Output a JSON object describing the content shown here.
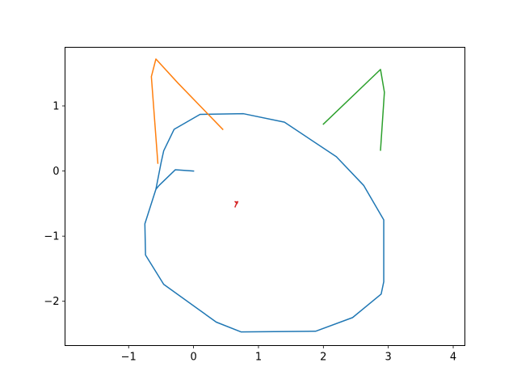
{
  "chart_data": {
    "type": "line",
    "title": "",
    "xlabel": "",
    "ylabel": "",
    "xlim": [
      -1.98,
      4.18
    ],
    "ylim": [
      -2.68,
      1.9
    ],
    "grid": false,
    "legend": "none",
    "xticks": [
      {
        "value": -1,
        "label": "−1"
      },
      {
        "value": 0,
        "label": "0"
      },
      {
        "value": 1,
        "label": "1"
      },
      {
        "value": 2,
        "label": "2"
      },
      {
        "value": 3,
        "label": "3"
      },
      {
        "value": 4,
        "label": "4"
      }
    ],
    "yticks": [
      {
        "value": 1,
        "label": "1"
      },
      {
        "value": 0,
        "label": "0"
      },
      {
        "value": -1,
        "label": "−1"
      },
      {
        "value": -2,
        "label": "−2"
      }
    ],
    "series": [
      {
        "color": "#1f77b4",
        "x": [
          0.0,
          -0.28,
          -0.53,
          -0.58,
          -0.75,
          -0.74,
          -0.46,
          0.35,
          0.73,
          1.88,
          2.45,
          2.89,
          2.93,
          2.93,
          2.62,
          2.2,
          1.4,
          0.77,
          0.1,
          -0.3,
          -0.46,
          -0.5,
          -0.58
        ],
        "y": [
          0.0,
          0.02,
          -0.22,
          -0.28,
          -0.81,
          -1.29,
          -1.74,
          -2.32,
          -2.47,
          -2.46,
          -2.25,
          -1.89,
          -1.7,
          -0.75,
          -0.22,
          0.22,
          0.75,
          0.88,
          0.87,
          0.64,
          0.31,
          0.13,
          -0.28
        ]
      },
      {
        "color": "#ff7f0e",
        "x": [
          -0.55,
          -0.65,
          -0.58,
          -0.24,
          0.45
        ],
        "y": [
          0.12,
          1.45,
          1.72,
          1.35,
          0.64
        ]
      },
      {
        "color": "#2ca02c",
        "x": [
          2.0,
          2.88,
          2.94,
          2.88
        ],
        "y": [
          0.72,
          1.56,
          1.21,
          0.32
        ]
      },
      {
        "color": "#d62728",
        "x": [
          0.64,
          0.67,
          0.64,
          0.67,
          0.68
        ],
        "y": [
          -0.55,
          -0.48,
          -0.47,
          -0.5,
          -0.47
        ]
      }
    ]
  }
}
